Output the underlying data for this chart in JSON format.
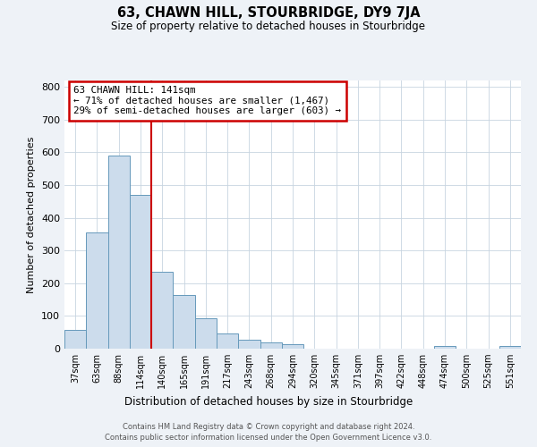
{
  "title": "63, CHAWN HILL, STOURBRIDGE, DY9 7JA",
  "subtitle": "Size of property relative to detached houses in Stourbridge",
  "xlabel": "Distribution of detached houses by size in Stourbridge",
  "ylabel": "Number of detached properties",
  "bar_labels": [
    "37sqm",
    "63sqm",
    "88sqm",
    "114sqm",
    "140sqm",
    "165sqm",
    "191sqm",
    "217sqm",
    "243sqm",
    "268sqm",
    "294sqm",
    "320sqm",
    "345sqm",
    "371sqm",
    "397sqm",
    "422sqm",
    "448sqm",
    "474sqm",
    "500sqm",
    "525sqm",
    "551sqm"
  ],
  "bar_values": [
    57,
    355,
    590,
    470,
    235,
    163,
    93,
    47,
    26,
    20,
    14,
    0,
    0,
    0,
    0,
    0,
    0,
    7,
    0,
    0,
    7
  ],
  "bar_color": "#ccdcec",
  "bar_edge_color": "#6699bb",
  "vline_index": 4,
  "vline_color": "#cc0000",
  "annotation_title": "63 CHAWN HILL: 141sqm",
  "annotation_line1": "← 71% of detached houses are smaller (1,467)",
  "annotation_line2": "29% of semi-detached houses are larger (603) →",
  "annotation_box_color": "#cc0000",
  "ylim": [
    0,
    820
  ],
  "yticks": [
    0,
    100,
    200,
    300,
    400,
    500,
    600,
    700,
    800
  ],
  "footer1": "Contains HM Land Registry data © Crown copyright and database right 2024.",
  "footer2": "Contains public sector information licensed under the Open Government Licence v3.0.",
  "background_color": "#eef2f7",
  "plot_bg_color": "#ffffff",
  "grid_color": "#c8d4e0"
}
